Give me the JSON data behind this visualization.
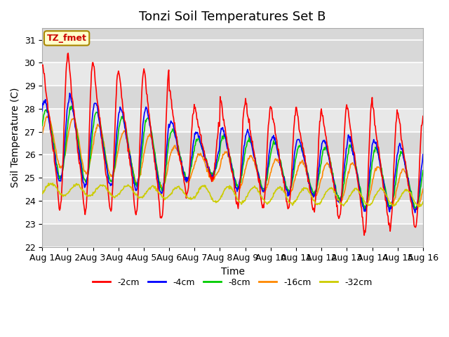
{
  "title": "Tonzi Soil Temperatures Set B",
  "xlabel": "Time",
  "ylabel": "Soil Temperature (C)",
  "ylim": [
    22.0,
    31.5
  ],
  "yticks": [
    22.0,
    23.0,
    24.0,
    25.0,
    26.0,
    27.0,
    28.0,
    29.0,
    30.0,
    31.0
  ],
  "xtick_labels": [
    "Aug 1",
    "Aug 2",
    "Aug 3",
    "Aug 4",
    "Aug 5",
    "Aug 6",
    "Aug 7",
    "Aug 8",
    "Aug 9",
    "Aug 10",
    "Aug 11",
    "Aug 12",
    "Aug 13",
    "Aug 14",
    "Aug 15",
    "Aug 16"
  ],
  "legend_label": "TZ_fmet",
  "series_labels": [
    "-2cm",
    "-4cm",
    "-8cm",
    "-16cm",
    "-32cm"
  ],
  "series_colors": [
    "#ff0000",
    "#0000ff",
    "#00cc00",
    "#ff8800",
    "#cccc00"
  ],
  "line_width": 1.2,
  "plot_bg_color": "#e8e8e8",
  "grid_color": "#ffffff",
  "title_fontsize": 13,
  "axis_label_fontsize": 10,
  "tick_fontsize": 9,
  "legend_fontsize": 9,
  "n_days": 15,
  "pts_per_day": 48
}
